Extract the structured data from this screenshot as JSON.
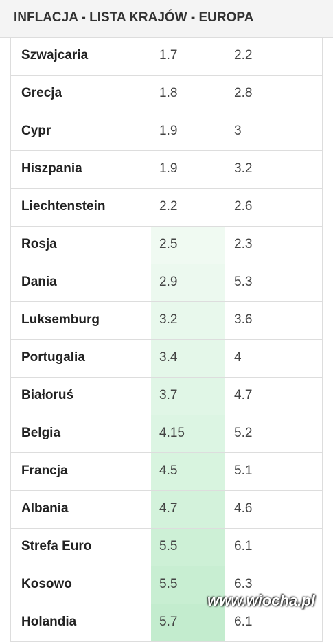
{
  "header": {
    "title": "INFLACJA - LISTA KRAJÓW - EUROPA"
  },
  "table": {
    "rows": [
      [
        "Szwajcaria",
        "1.7",
        "2.2"
      ],
      [
        "Grecja",
        "1.8",
        "2.8"
      ],
      [
        "Cypr",
        "1.9",
        "3"
      ],
      [
        "Hiszpania",
        "1.9",
        "3.2"
      ],
      [
        "Liechtenstein",
        "2.2",
        "2.6"
      ],
      [
        "Rosja",
        "2.5",
        "2.3"
      ],
      [
        "Dania",
        "2.9",
        "5.3"
      ],
      [
        "Luksemburg",
        "3.2",
        "3.6"
      ],
      [
        "Portugalia",
        "3.4",
        "4"
      ],
      [
        "Białoruś",
        "3.7",
        "4.7"
      ],
      [
        "Belgia",
        "4.15",
        "5.2"
      ],
      [
        "Francja",
        "4.5",
        "5.1"
      ],
      [
        "Albania",
        "4.7",
        "4.6"
      ],
      [
        "Strefa Euro",
        "5.5",
        "6.1"
      ],
      [
        "Kosowo",
        "5.5",
        "6.3"
      ],
      [
        "Holandia",
        "5.7",
        "6.1"
      ]
    ]
  },
  "watermark": "www.wiocha.pl"
}
